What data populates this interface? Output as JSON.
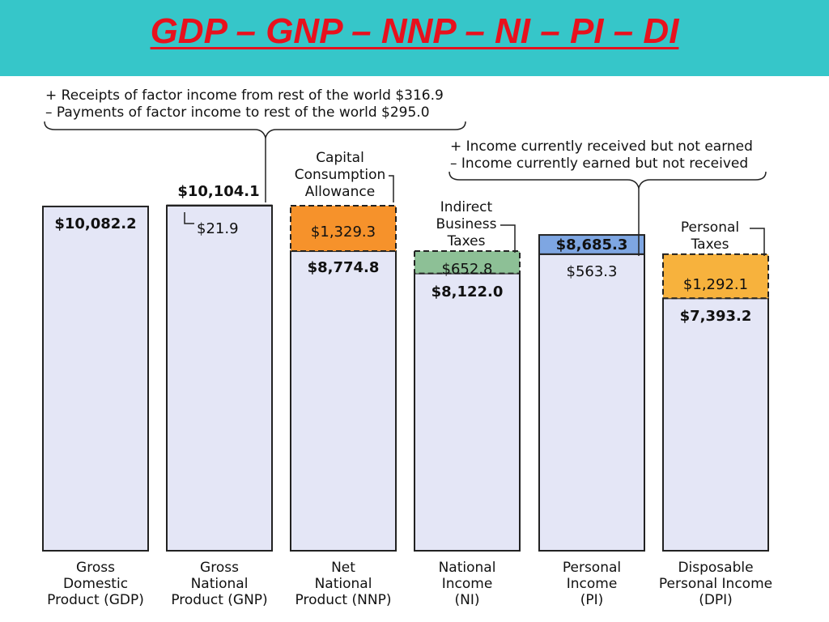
{
  "page": {
    "title": "GDP – GNP – NNP – NI – PI – DI"
  },
  "colors": {
    "title_bg": "#36c6c9",
    "title_text": "#e8111d",
    "bar_fill": "#e4e6f6",
    "bar_stroke": "#222222",
    "gnp_segment": "#9db9ea",
    "capital_consumption": "#f6922b",
    "indirect_taxes": "#8dc096",
    "personal_income_extra": "#7ea6e2",
    "personal_taxes": "#f7b23d"
  },
  "chart_data": {
    "type": "bar",
    "title": "GDP – GNP – NNP – NI – PI – DI",
    "units": "billions of dollars",
    "categories": [
      {
        "lines": [
          "Gross",
          "Domestic",
          "Product (GDP)"
        ],
        "value": 10082.2,
        "value_label": "$10,082.2"
      },
      {
        "lines": [
          "Gross",
          "National",
          "Product (GNP)"
        ],
        "value": 10104.1,
        "value_label": "$10,104.1"
      },
      {
        "lines": [
          "Net",
          "National",
          "Product (NNP)"
        ],
        "value": 8774.8,
        "value_label": "$8,774.8"
      },
      {
        "lines": [
          "National",
          "Income",
          "(NI)"
        ],
        "value": 8122.0,
        "value_label": "$8,122.0"
      },
      {
        "lines": [
          "Personal",
          "Income",
          "(PI)"
        ],
        "value": 8685.3,
        "value_label": "$8,685.3"
      },
      {
        "lines": [
          "Disposable",
          "Personal Income",
          "(DPI)"
        ],
        "value": 7393.2,
        "value_label": "$7,393.2"
      }
    ],
    "segments": [
      {
        "bar": 1,
        "value": 21.9,
        "label": "$21.9",
        "color_key": "gnp_segment",
        "dashed": false
      },
      {
        "bar": 2,
        "value": 1329.3,
        "label": "$1,329.3",
        "color_key": "capital_consumption",
        "dashed": true
      },
      {
        "bar": 3,
        "value": 652.8,
        "label": "$652.8",
        "color_key": "indirect_taxes",
        "dashed": true
      },
      {
        "bar": 4,
        "value": 563.3,
        "label": "$563.3",
        "color_key": "personal_income_extra",
        "dashed": false
      },
      {
        "bar": 5,
        "value": 1292.1,
        "label": "$1,292.1",
        "color_key": "personal_taxes",
        "dashed": true
      }
    ],
    "annotations": {
      "factor_income": [
        "+ Receipts of factor income from rest of the world $316.9",
        "– Payments of factor income to rest of the world $295.0"
      ],
      "capital_consumption": [
        "Capital",
        "Consumption",
        "Allowance"
      ],
      "indirect_taxes": [
        "Indirect",
        "Business",
        "Taxes"
      ],
      "income_adjustments": [
        "+ Income currently received but not earned",
        "– Income currently earned but not received"
      ],
      "personal_taxes": [
        "Personal",
        "Taxes"
      ]
    }
  }
}
